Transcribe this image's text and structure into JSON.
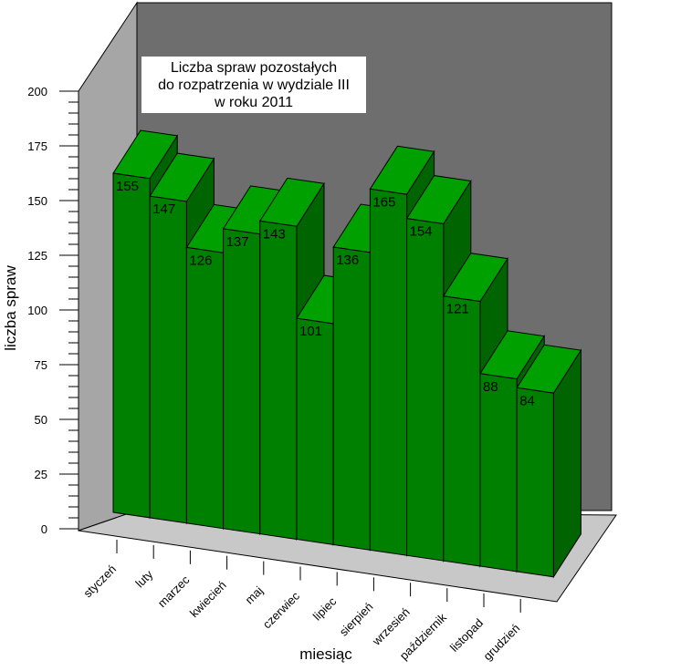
{
  "chart_data": {
    "type": "bar",
    "title_lines": [
      "Liczba spraw pozostałych",
      "do rozpatrzenia w  wydziale III",
      "w roku 2011"
    ],
    "xlabel": "miesiąc",
    "ylabel": "liczba spraw",
    "ylim": [
      0,
      200
    ],
    "yticks": [
      0,
      25,
      50,
      75,
      100,
      125,
      150,
      175,
      200
    ],
    "categories": [
      "styczeń",
      "luty",
      "marzec",
      "kwiecień",
      "maj",
      "czerwiec",
      "lipiec",
      "sierpień",
      "wrzesień",
      "październik",
      "listopad",
      "grudzień"
    ],
    "values": [
      155,
      147,
      126,
      137,
      143,
      101,
      136,
      165,
      154,
      121,
      88,
      84
    ],
    "grid": false,
    "colors": {
      "bar_front": "#008000",
      "bar_side": "#006400",
      "bar_top": "#00a000",
      "back_wall": "#6e6e6e",
      "side_wall": "#a6a6a6",
      "floor": "#c8c8c8",
      "title_box": "#ffffff"
    }
  }
}
